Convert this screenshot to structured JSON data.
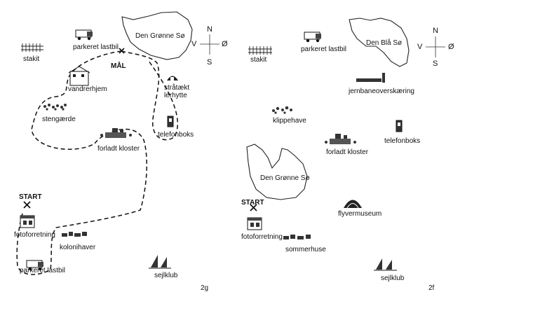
{
  "map_g": {
    "id_label": "2g",
    "lake_label": "Den Grønne Sø",
    "compass": {
      "n": "N",
      "s": "S",
      "e": "Ø",
      "w": "V"
    },
    "landmarks": {
      "stakit": "stakit",
      "parkeret_lastbil_top": "parkeret lastbil",
      "maal": "MÅL",
      "vandrerhjem": "vandrerhjem",
      "straataekt_lerhytte_1": "stråtækt",
      "straataekt_lerhytte_2": "lerhytte",
      "stengaerde": "stengærde",
      "telefonboks": "telefonboks",
      "forladt_kloster": "forladt kloster",
      "start": "START",
      "fotoforretning": "fotoforretning",
      "kolonihaver": "kolonihaver",
      "parkeret_lastbil_bottom": "parkeret lastbil",
      "sejlklub": "sejlklub"
    }
  },
  "map_f": {
    "id_label": "2f",
    "lake_top_label": "Den Blå Sø",
    "lake_mid_label": "Den Grønne Sø",
    "compass": {
      "n": "N",
      "s": "S",
      "e": "Ø",
      "w": "V"
    },
    "landmarks": {
      "stakit": "stakit",
      "parkeret_lastbil": "parkeret lastbil",
      "jernbaneoverskaering": "jernbaneoverskæring",
      "klippehave": "klippehave",
      "telefonboks": "telefonboks",
      "forladt_kloster": "forladt kloster",
      "start": "START",
      "flyvermuseum": "flyvermuseum",
      "fotoforretning": "fotoforretning",
      "sommerhuse": "sommerhuse",
      "sejlklub": "sejlklub"
    }
  }
}
